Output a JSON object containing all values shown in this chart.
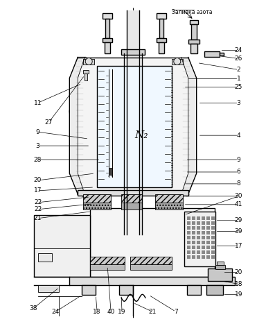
{
  "bg_color": "#ffffff",
  "lc": "#000000",
  "title_text": "Заливка азота",
  "n2_label": "N₂"
}
